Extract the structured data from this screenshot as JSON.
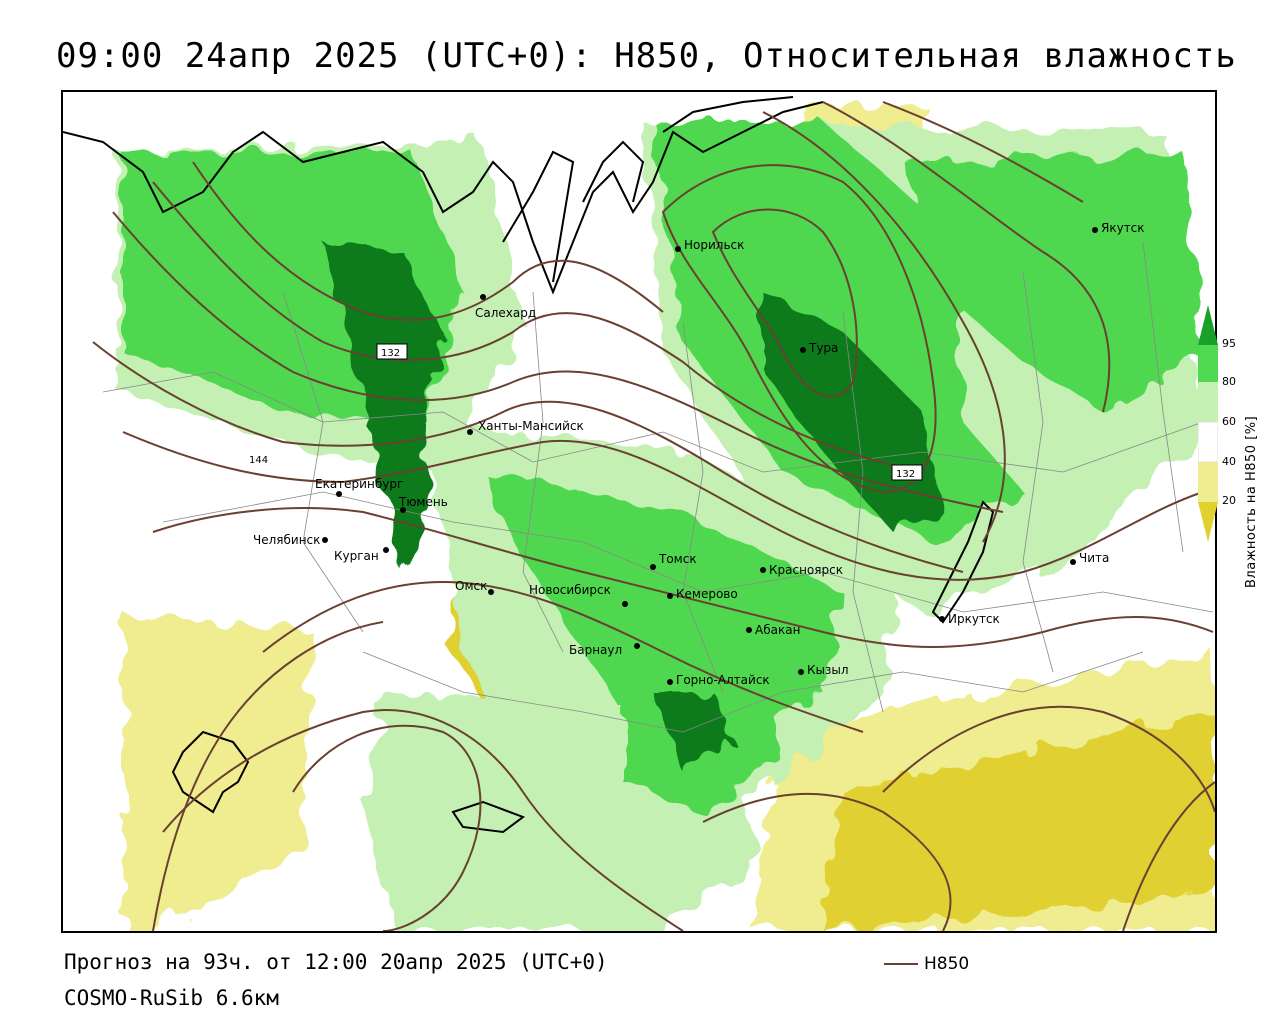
{
  "title": "09:00 24апр 2025 (UTC+0): H850, Относительная влажность",
  "forecast_text": "Прогноз на 93ч. от 12:00 20апр 2025 (UTC+0)",
  "model_text": "COSMO-RuSib 6.6км",
  "legend": {
    "label": "H850",
    "color": "#6a4030"
  },
  "colorbar": {
    "title": "Влажность на H850 [%]",
    "ticks": [
      "95",
      "80",
      "60",
      "40",
      "20"
    ],
    "colors": {
      "very_dry": "#e0d030",
      "dry": "#f0ec90",
      "mid": "#ffffff",
      "moist": "#c4f0b4",
      "wet": "#50d850",
      "very_wet": "#18a028",
      "saturated": "#0a7a1c"
    }
  },
  "cities": [
    {
      "name": "Якутск"
    },
    {
      "name": "Норильск"
    },
    {
      "name": "Салехард"
    },
    {
      "name": "Тура"
    },
    {
      "name": "Ханты-Мансийск"
    },
    {
      "name": "Екатеринбург"
    },
    {
      "name": "Тюмень"
    },
    {
      "name": "Челябинск"
    },
    {
      "name": "Курган"
    },
    {
      "name": "Томск"
    },
    {
      "name": "Красноярск"
    },
    {
      "name": "Омск"
    },
    {
      "name": "Новосибирск"
    },
    {
      "name": "Кемерово"
    },
    {
      "name": "Абакан"
    },
    {
      "name": "Барнаул"
    },
    {
      "name": "Иркутск"
    },
    {
      "name": "Чита"
    },
    {
      "name": "Горно-Алтайск"
    },
    {
      "name": "Кызыл"
    }
  ],
  "contour_labels": [
    "132",
    "132",
    "144"
  ]
}
